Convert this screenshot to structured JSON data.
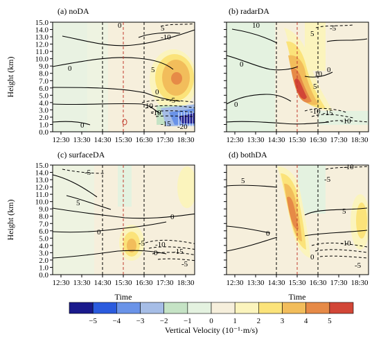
{
  "chart_data": {
    "type": "heatmap",
    "panels": [
      {
        "title": "(a) noDA",
        "yticks": [
          "0.0",
          "1.0",
          "2.0",
          "3.0",
          "4.0",
          "5.0",
          "6.0",
          "7.0",
          "8.0",
          "9.0",
          "10.0",
          "11.0",
          "12.0",
          "13.0",
          "14.0",
          "15.0"
        ],
        "xticks": [
          "12:30",
          "13:30",
          "14:30",
          "15:30",
          "16:30",
          "17:30",
          "18:30"
        ],
        "ylabel": "Height (km)",
        "xlabel": "",
        "contour_labels": [
          "0",
          "5",
          "-10",
          "0",
          "5",
          "0",
          "-5",
          "-10",
          "-15",
          "-20",
          "10",
          "0"
        ]
      },
      {
        "title": "(b) radarDA",
        "yticks": [],
        "xticks": [
          "12:30",
          "13:30",
          "14:30",
          "15:30",
          "16:30",
          "17:30",
          "18:30"
        ],
        "ylabel": "",
        "xlabel": "",
        "contour_labels": [
          "10",
          "-5",
          "5",
          "0",
          "0",
          "0",
          "10",
          "5",
          "-10",
          "-15",
          "-10"
        ]
      },
      {
        "title": "(c) surfaceDA",
        "yticks": [
          "0.0",
          "1.0",
          "2.0",
          "3.0",
          "4.0",
          "5.0",
          "6.0",
          "7.0",
          "8.0",
          "9.0",
          "10.0",
          "11.0",
          "12.0",
          "13.0",
          "14.0",
          "15.0"
        ],
        "xticks": [
          "12:30",
          "13:30",
          "14:30",
          "15:30",
          "16:30",
          "17:30",
          "18:30"
        ],
        "ylabel": "Height (km)",
        "xlabel": "Time",
        "contour_labels": [
          "-5",
          "5",
          "0",
          "0",
          "0",
          "-5",
          "-10",
          "-15",
          "-5"
        ]
      },
      {
        "title": "(d) bothDA",
        "yticks": [],
        "xticks": [
          "12:30",
          "13:30",
          "14:30",
          "15:30",
          "16:30",
          "17:30",
          "18:30"
        ],
        "ylabel": "",
        "xlabel": "Time",
        "contour_labels": [
          "-10",
          "5",
          "-5",
          "0",
          "-10",
          "5",
          "0",
          "-5"
        ]
      }
    ],
    "colorbar": {
      "ticks": [
        "−5",
        "−4",
        "−3",
        "−2",
        "−1",
        "0",
        "1",
        "2",
        "3",
        "4",
        "5"
      ],
      "colors": [
        "#1a1a8c",
        "#2b5bde",
        "#6a93e8",
        "#a6bde6",
        "#c5e3c5",
        "#e4f2e0",
        "#f6efdc",
        "#fbf4bd",
        "#fbe37a",
        "#f2bd5b",
        "#e68a47",
        "#d24637"
      ],
      "label": "Vertical Velocity (10⁻¹·m/s)"
    }
  }
}
